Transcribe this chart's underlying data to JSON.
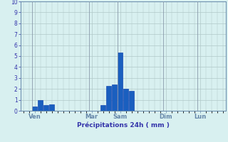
{
  "xlabel": "Précipitations 24h ( mm )",
  "ylim": [
    0,
    10
  ],
  "yticks": [
    0,
    1,
    2,
    3,
    4,
    5,
    6,
    7,
    8,
    9,
    10
  ],
  "background_color": "#d8f0f0",
  "bar_color": "#1a5fbf",
  "bar_edge_color": "#0033aa",
  "grid_color": "#b0c8c8",
  "axis_color": "#6688aa",
  "tick_label_color": "#3333aa",
  "day_labels": [
    "Ven",
    "Mar",
    "Sam",
    "Dim",
    "Lun"
  ],
  "day_positions": [
    2,
    12,
    17,
    25,
    31
  ],
  "num_bars": 36,
  "bar_values": [
    0,
    0,
    0.4,
    1.0,
    0.5,
    0.6,
    0,
    0,
    0,
    0,
    0,
    0,
    0,
    0,
    0.5,
    2.3,
    2.4,
    5.3,
    2.0,
    1.8,
    0,
    0,
    0,
    0,
    0,
    0,
    0,
    0,
    0,
    0,
    0,
    0,
    0,
    0,
    0,
    0
  ],
  "figsize": [
    3.2,
    2.0
  ],
  "dpi": 100
}
